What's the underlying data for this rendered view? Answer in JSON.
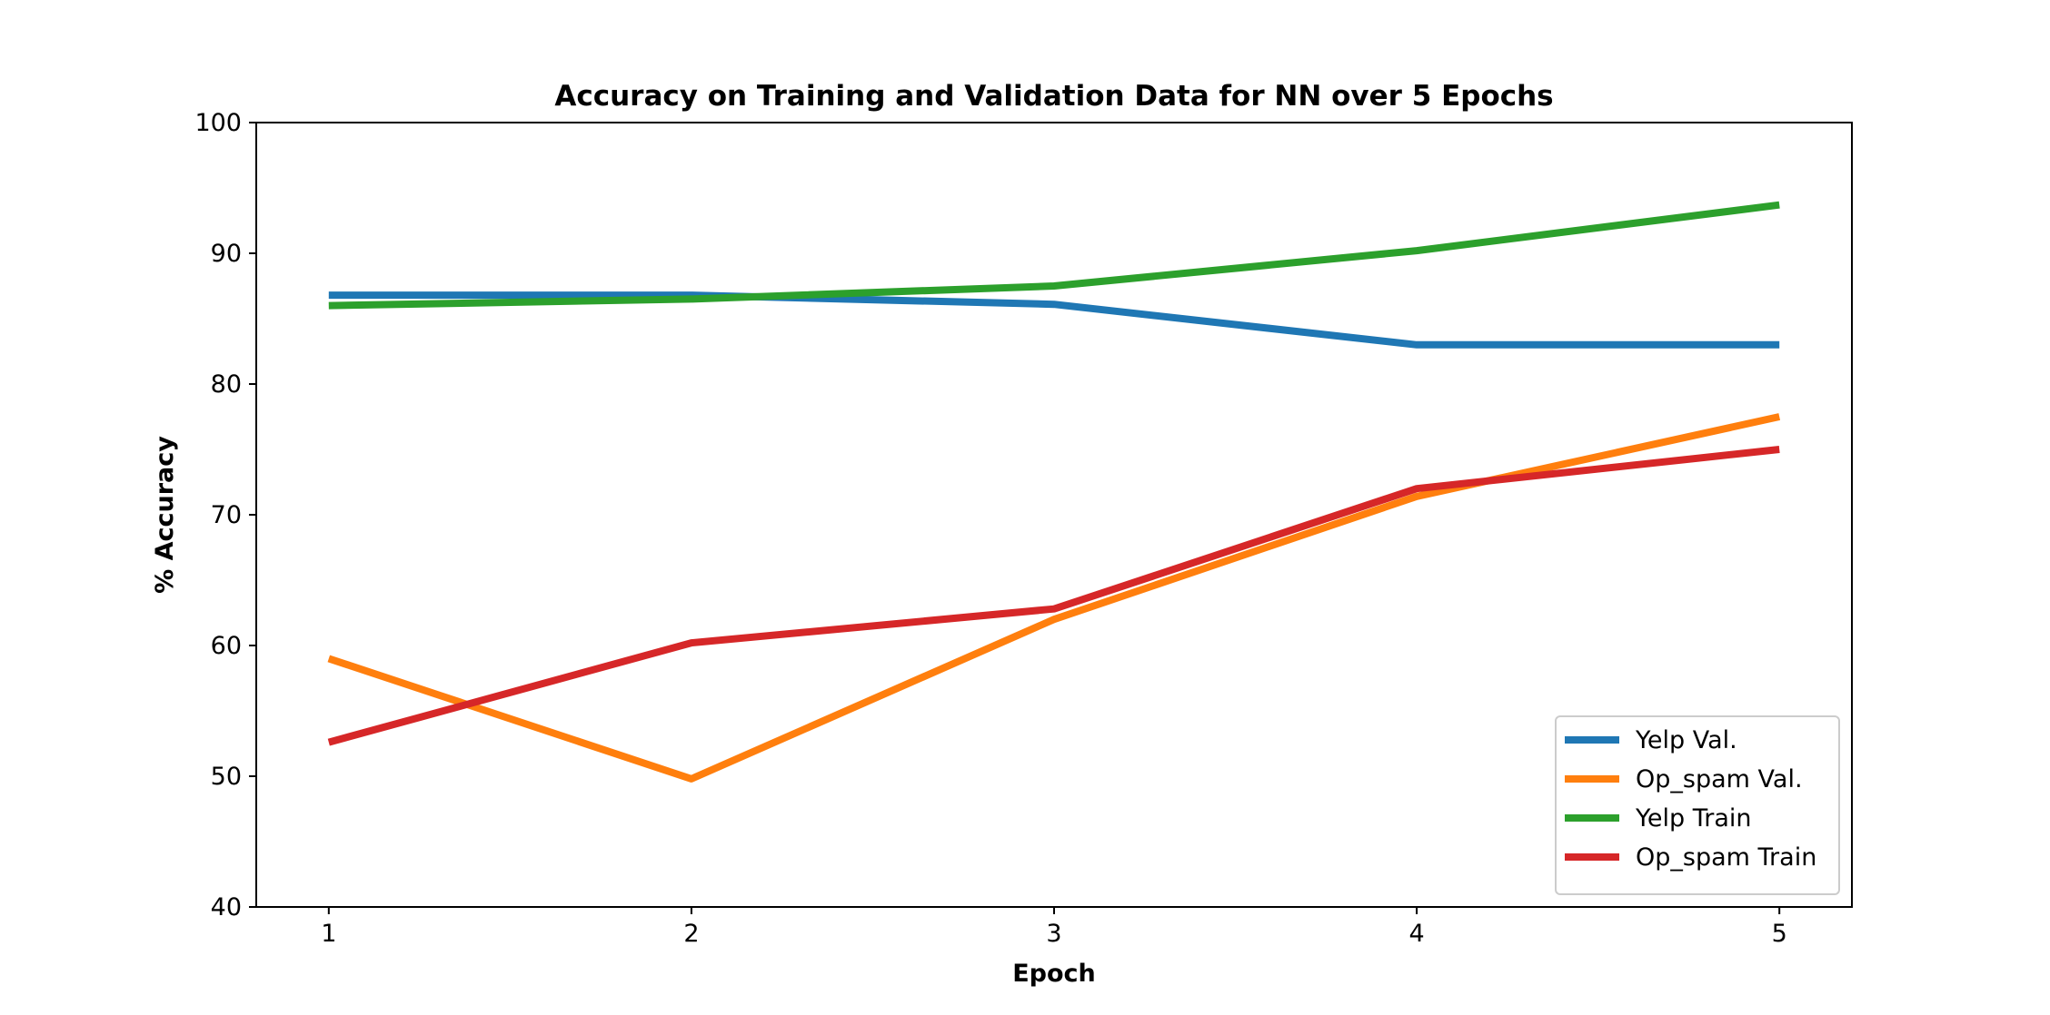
{
  "chart_data": {
    "type": "line",
    "title": "Accuracy on Training and Validation Data for NN over 5 Epochs",
    "xlabel": "Epoch",
    "ylabel": "% Accuracy",
    "x": [
      1,
      2,
      3,
      4,
      5
    ],
    "x_ticks": [
      "1",
      "2",
      "3",
      "4",
      "5"
    ],
    "y_ticks": [
      "40",
      "50",
      "60",
      "70",
      "80",
      "90",
      "100"
    ],
    "xlim": [
      0.8,
      5.2
    ],
    "ylim": [
      40,
      100
    ],
    "grid": false,
    "legend_position": "lower-right",
    "series": [
      {
        "name": "Yelp Val.",
        "color": "#1f77b4",
        "values": [
          86.8,
          86.8,
          86.1,
          83.0,
          83.0
        ]
      },
      {
        "name": "Op_spam Val.",
        "color": "#ff7f0e",
        "values": [
          59.0,
          49.8,
          62.0,
          71.4,
          77.5
        ]
      },
      {
        "name": "Yelp Train",
        "color": "#2ca02c",
        "values": [
          86.0,
          86.5,
          87.5,
          90.2,
          93.7
        ]
      },
      {
        "name": "Op_spam Train",
        "color": "#d62728",
        "values": [
          52.6,
          60.2,
          62.8,
          72.0,
          75.0
        ]
      }
    ]
  }
}
